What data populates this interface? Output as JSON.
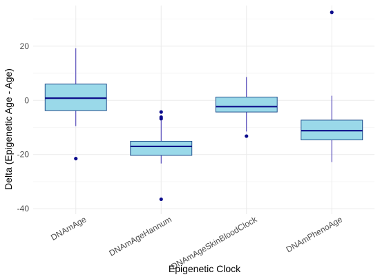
{
  "chart_data": {
    "type": "boxplot",
    "xlabel": "Epigenetic Clock",
    "ylabel": "Delta (Epigenetic Age - Age)",
    "ylim": [
      -42,
      35
    ],
    "yticks": [
      -40,
      -20,
      0,
      20
    ],
    "grid": true,
    "categories": [
      "DNAmAge",
      "DNAmAgeHannum",
      "DNAmAgeSkinBloodClock",
      "DNAmPhenoAge"
    ],
    "boxes": [
      {
        "category": "DNAmAge",
        "whisker_low": -9.5,
        "q1": -3.8,
        "median": 0.8,
        "q3": 6.0,
        "whisker_high": 19.2,
        "outliers": [
          -21.5
        ]
      },
      {
        "category": "DNAmAgeHannum",
        "whisker_low": -23.3,
        "q1": -20.3,
        "median": -17.0,
        "q3": -15.1,
        "whisker_high": -7.5,
        "outliers": [
          -4.3,
          -6.2,
          -6.8,
          -36.5
        ]
      },
      {
        "category": "DNAmAgeSkinBloodClock",
        "whisker_low": -11.5,
        "q1": -4.3,
        "median": -2.3,
        "q3": 1.2,
        "whisker_high": 8.6,
        "outliers": [
          -13.2
        ]
      },
      {
        "category": "DNAmPhenoAge",
        "whisker_low": -22.8,
        "q1": -14.6,
        "median": -11.2,
        "q3": -7.3,
        "whisker_high": 1.7,
        "outliers": [
          32.5
        ]
      }
    ],
    "colors": {
      "box_fill": "#9ad9e9",
      "box_outline": "#1f4e8c",
      "median": "#0d0d8a",
      "whisker": "#3a2fb0",
      "outlier": "#0b0b8c"
    }
  }
}
